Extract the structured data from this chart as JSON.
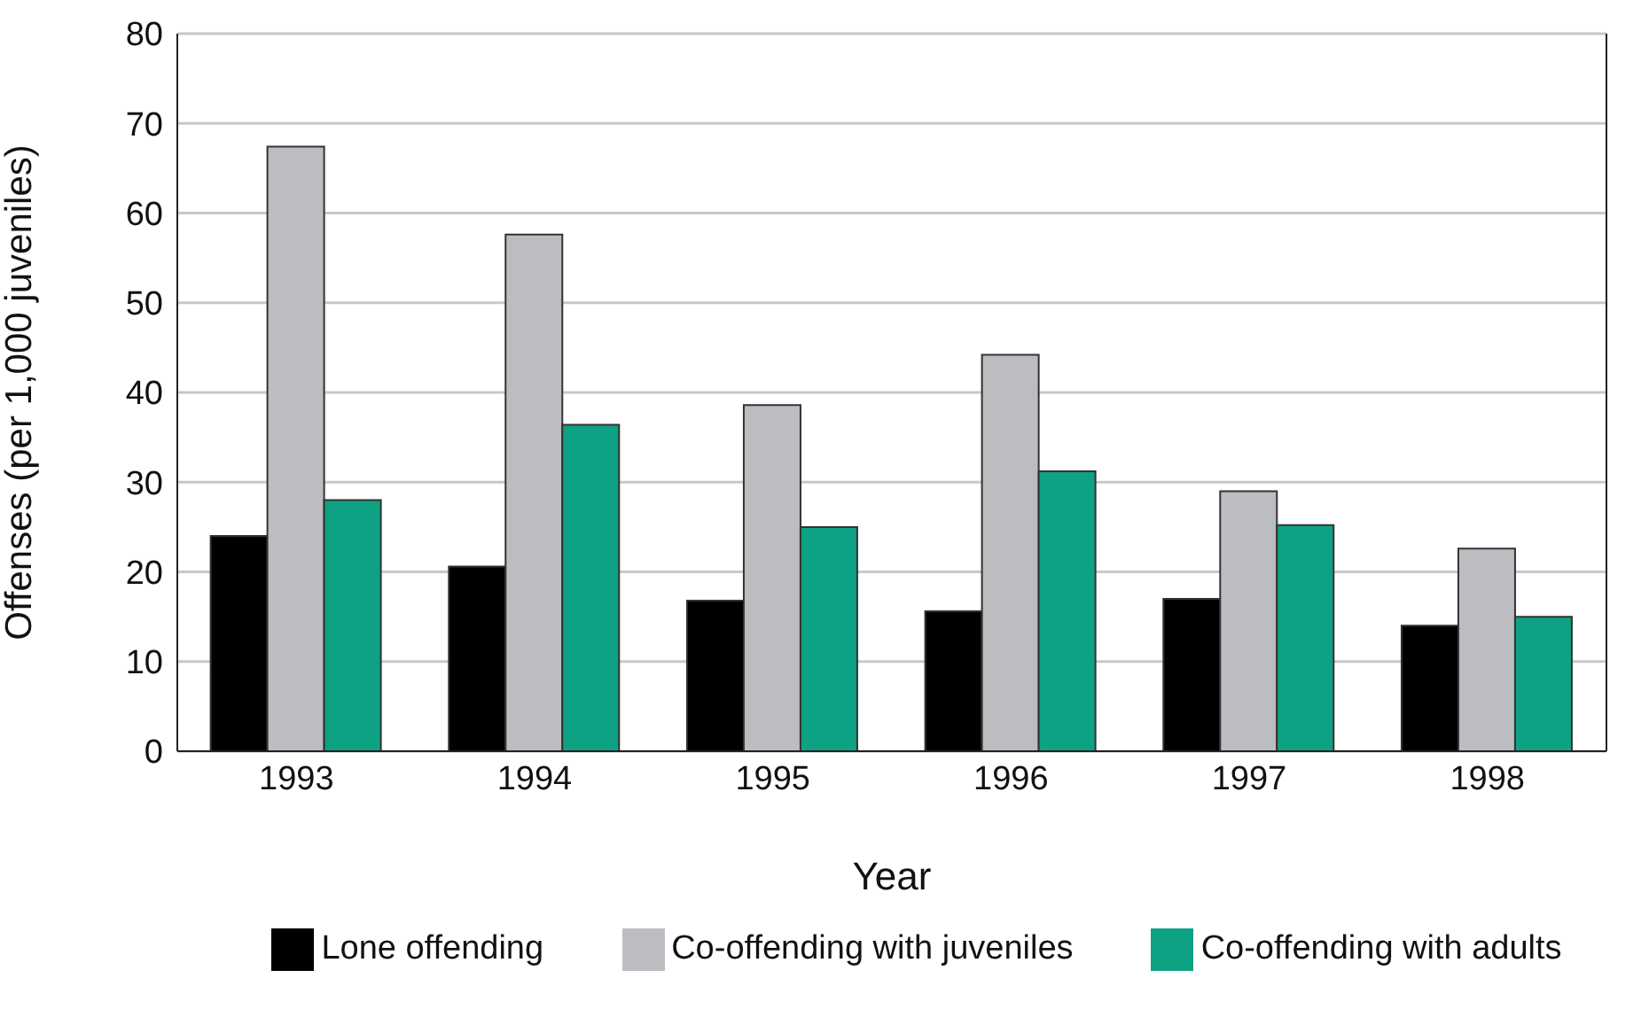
{
  "chart_data": {
    "type": "bar",
    "xlabel": "Year",
    "ylabel": "Offenses (per 1,000 juveniles)",
    "categories": [
      "1993",
      "1994",
      "1995",
      "1996",
      "1997",
      "1998"
    ],
    "series": [
      {
        "name": "Lone offending",
        "color": "#000000",
        "values": [
          24,
          20.6,
          16.8,
          15.6,
          17,
          14
        ]
      },
      {
        "name": "Co-offending with juveniles",
        "color": "#bcbdc1",
        "values": [
          67.4,
          57.6,
          38.6,
          44.2,
          29,
          22.6
        ]
      },
      {
        "name": "Co-offending with adults",
        "color": "#0ea285",
        "values": [
          28,
          36.4,
          25,
          31.2,
          25.2,
          15
        ]
      }
    ],
    "ylim": [
      0,
      80
    ],
    "yticks": [
      0,
      10,
      20,
      30,
      40,
      50,
      60,
      70,
      80
    ],
    "grid": "y",
    "legend": "bottom"
  }
}
